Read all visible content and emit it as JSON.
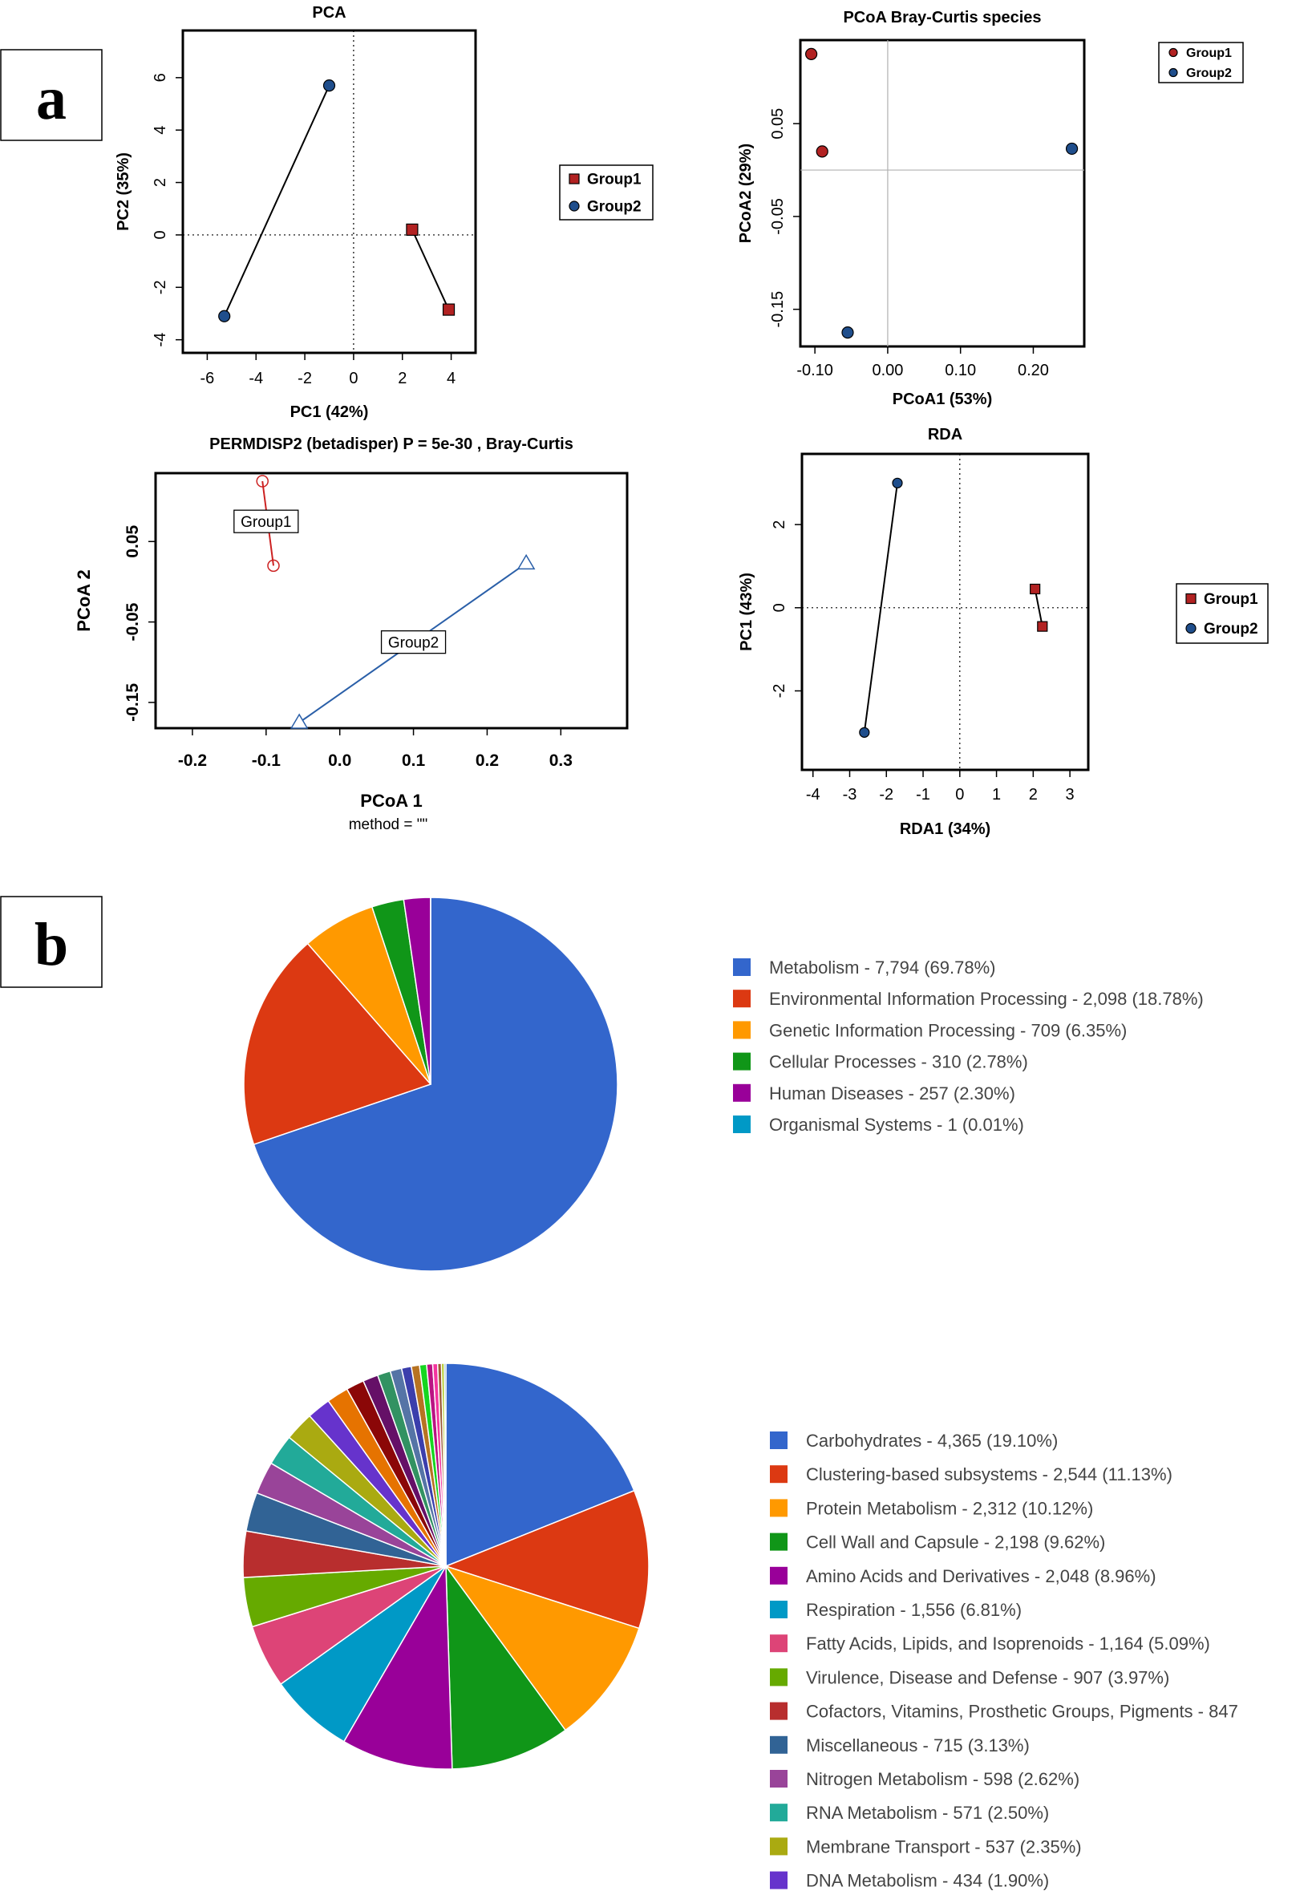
{
  "panel_labels": {
    "a": "a",
    "b": "b"
  },
  "colors": {
    "group1": "#b22222",
    "group2": "#1f4e8c",
    "line": "#000000",
    "pdisp_g1": "#cc2222",
    "pdisp_g2": "#2a5fa8"
  },
  "chart_data": [
    {
      "id": "pca",
      "type": "scatter",
      "title": "PCA",
      "xlabel": "PC1 (42%)",
      "ylabel": "PC2 (35%)",
      "xlim": [
        -7,
        5
      ],
      "ylim": [
        -4.5,
        7.8
      ],
      "xticks": [
        "-6",
        "-4",
        "-2",
        "0",
        "2",
        "4"
      ],
      "xtick_values": [
        -6,
        -4,
        -2,
        0,
        2,
        4
      ],
      "yticks": [
        "-4",
        "-2",
        "0",
        "2",
        "4",
        "6"
      ],
      "ytick_values": [
        -4,
        -2,
        0,
        2,
        4,
        6
      ],
      "legend": [
        "Group1",
        "Group2"
      ],
      "legend_position": "right",
      "series": [
        {
          "name": "Group1",
          "marker": "square",
          "points": [
            [
              2.4,
              0.2
            ],
            [
              3.9,
              -2.85
            ]
          ]
        },
        {
          "name": "Group2",
          "marker": "circle",
          "points": [
            [
              -1.0,
              5.7
            ],
            [
              -5.3,
              -3.1
            ]
          ]
        }
      ]
    },
    {
      "id": "pcoa",
      "type": "scatter",
      "title": "PCoA Bray-Curtis species",
      "xlabel": "PCoA1 (53%)",
      "ylabel": "PCoA2 (29%)",
      "xlim": [
        -0.12,
        0.27
      ],
      "ylim": [
        -0.19,
        0.14
      ],
      "xticks": [
        "-0.10",
        "0.00",
        "0.10",
        "0.20"
      ],
      "xtick_values": [
        -0.1,
        0.0,
        0.1,
        0.2
      ],
      "yticks": [
        "-0.15",
        "-0.05",
        "0.05"
      ],
      "ytick_values": [
        -0.15,
        -0.05,
        0.05
      ],
      "legend": [
        "Group1",
        "Group2"
      ],
      "legend_position": "top-right",
      "series": [
        {
          "name": "Group1",
          "marker": "circle",
          "points": [
            [
              -0.105,
              0.125
            ],
            [
              -0.09,
              0.02
            ]
          ]
        },
        {
          "name": "Group2",
          "marker": "circle",
          "points": [
            [
              0.253,
              0.023
            ],
            [
              -0.055,
              -0.175
            ]
          ]
        }
      ]
    },
    {
      "id": "permdisp",
      "type": "scatter",
      "title": "PERMDISP2 (betadisper) P =  5e-30 , Bray-Curtis",
      "xlabel": "PCoA 1",
      "subxlabel": "method = \"\"",
      "ylabel": "PCoA 2",
      "xlim": [
        -0.25,
        0.39
      ],
      "ylim": [
        -0.182,
        0.135
      ],
      "xticks": [
        "-0.2",
        "-0.1",
        "0.0",
        "0.1",
        "0.2",
        "0.3"
      ],
      "xtick_values": [
        -0.2,
        -0.1,
        0.0,
        0.1,
        0.2,
        0.3
      ],
      "yticks": [
        "-0.15",
        "-0.05",
        "0.05"
      ],
      "ytick_values": [
        -0.15,
        -0.05,
        0.05
      ],
      "groups": [
        {
          "name": "Group1",
          "label": "Group1",
          "marker": "circle",
          "points": [
            [
              -0.105,
              0.125
            ],
            [
              -0.09,
              0.02
            ]
          ],
          "label_at": [
            -0.1,
            0.075
          ]
        },
        {
          "name": "Group2",
          "label": "Group2",
          "marker": "triangle",
          "points": [
            [
              0.253,
              0.023
            ],
            [
              -0.055,
              -0.175
            ]
          ],
          "label_at": [
            0.1,
            -0.075
          ]
        }
      ]
    },
    {
      "id": "rda",
      "type": "scatter",
      "title": "RDA",
      "xlabel": "RDA1 (34%)",
      "ylabel": "PC1 (43%)",
      "xlim": [
        -4.3,
        3.5
      ],
      "ylim": [
        -3.9,
        3.7
      ],
      "xticks": [
        "-4",
        "-3",
        "-2",
        "-1",
        "0",
        "1",
        "2",
        "3"
      ],
      "xtick_values": [
        -4,
        -3,
        -2,
        -1,
        0,
        1,
        2,
        3
      ],
      "yticks": [
        "-2",
        "0",
        "2"
      ],
      "ytick_values": [
        -2,
        0,
        2
      ],
      "legend": [
        "Group1",
        "Group2"
      ],
      "legend_position": "right",
      "series": [
        {
          "name": "Group1",
          "marker": "square",
          "points": [
            [
              2.05,
              0.45
            ],
            [
              2.25,
              -0.45
            ]
          ]
        },
        {
          "name": "Group2",
          "marker": "circle",
          "points": [
            [
              -1.7,
              3.0
            ],
            [
              -2.6,
              -3.0
            ]
          ]
        }
      ]
    },
    {
      "id": "pie-kegg",
      "type": "pie",
      "slices": [
        {
          "label": "Metabolism",
          "value": 7794,
          "legend": "Metabolism - 7,794 (69.78%)",
          "color": "#3366cc"
        },
        {
          "label": "Environmental Information Processing",
          "value": 2098,
          "legend": "Environmental Information Processing - 2,098 (18.78%)",
          "color": "#dc3912"
        },
        {
          "label": "Genetic Information Processing",
          "value": 709,
          "legend": "Genetic Information Processing - 709 (6.35%)",
          "color": "#ff9900"
        },
        {
          "label": "Cellular Processes",
          "value": 310,
          "legend": "Cellular Processes - 310 (2.78%)",
          "color": "#109618"
        },
        {
          "label": "Human Diseases",
          "value": 257,
          "legend": "Human Diseases - 257 (2.30%)",
          "color": "#990099"
        },
        {
          "label": "Organismal Systems",
          "value": 1,
          "legend": "Organismal Systems - 1 (0.01%)",
          "color": "#0099c6"
        }
      ]
    },
    {
      "id": "pie-seed",
      "type": "pie",
      "slices": [
        {
          "label": "Carbohydrates",
          "value": 4365,
          "legend": "Carbohydrates - 4,365 (19.10%)",
          "color": "#3366cc"
        },
        {
          "label": "Clustering-based subsystems",
          "value": 2544,
          "legend": "Clustering-based subsystems - 2,544 (11.13%)",
          "color": "#dc3912"
        },
        {
          "label": "Protein Metabolism",
          "value": 2312,
          "legend": "Protein Metabolism - 2,312 (10.12%)",
          "color": "#ff9900"
        },
        {
          "label": "Cell Wall and Capsule",
          "value": 2198,
          "legend": "Cell Wall and Capsule - 2,198 (9.62%)",
          "color": "#109618"
        },
        {
          "label": "Amino Acids and Derivatives",
          "value": 2048,
          "legend": "Amino Acids and Derivatives - 2,048 (8.96%)",
          "color": "#990099"
        },
        {
          "label": "Respiration",
          "value": 1556,
          "legend": "Respiration - 1,556 (6.81%)",
          "color": "#0099c6"
        },
        {
          "label": "Fatty Acids, Lipids, and Isoprenoids",
          "value": 1164,
          "legend": "Fatty Acids, Lipids, and Isoprenoids - 1,164 (5.09%)",
          "color": "#dd4477"
        },
        {
          "label": "Virulence, Disease and Defense",
          "value": 907,
          "legend": "Virulence, Disease and Defense - 907 (3.97%)",
          "color": "#66aa00"
        },
        {
          "label": "Cofactors, Vitamins, Prosthetic Groups, Pigments",
          "value": 847,
          "legend": "Cofactors, Vitamins, Prosthetic Groups, Pigments - 847",
          "color": "#b82e2e"
        },
        {
          "label": "Miscellaneous",
          "value": 715,
          "legend": "Miscellaneous - 715 (3.13%)",
          "color": "#316395"
        },
        {
          "label": "Nitrogen Metabolism",
          "value": 598,
          "legend": "Nitrogen Metabolism - 598 (2.62%)",
          "color": "#994499"
        },
        {
          "label": "RNA Metabolism",
          "value": 571,
          "legend": "RNA Metabolism - 571 (2.50%)",
          "color": "#22aa99"
        },
        {
          "label": "Membrane Transport",
          "value": 537,
          "legend": "Membrane Transport - 537 (2.35%)",
          "color": "#aaaa11"
        },
        {
          "label": "DNA Metabolism",
          "value": 434,
          "legend": "DNA Metabolism - 434 (1.90%)",
          "color": "#6633cc"
        },
        {
          "label": "",
          "value": 400,
          "color": "#e67300"
        },
        {
          "label": "",
          "value": 330,
          "color": "#8b0707"
        },
        {
          "label": "",
          "value": 280,
          "color": "#651067"
        },
        {
          "label": "",
          "value": 240,
          "color": "#329262"
        },
        {
          "label": "",
          "value": 210,
          "color": "#5574a6"
        },
        {
          "label": "",
          "value": 180,
          "color": "#3b3eac"
        },
        {
          "label": "",
          "value": 150,
          "color": "#b77322"
        },
        {
          "label": "",
          "value": 130,
          "color": "#16d620"
        },
        {
          "label": "",
          "value": 110,
          "color": "#b91383"
        },
        {
          "label": "",
          "value": 90,
          "color": "#f4359e"
        },
        {
          "label": "",
          "value": 70,
          "color": "#9c5935"
        },
        {
          "label": "",
          "value": 50,
          "color": "#a9c413"
        },
        {
          "label": "",
          "value": 30,
          "color": "#2a778d"
        }
      ]
    }
  ]
}
